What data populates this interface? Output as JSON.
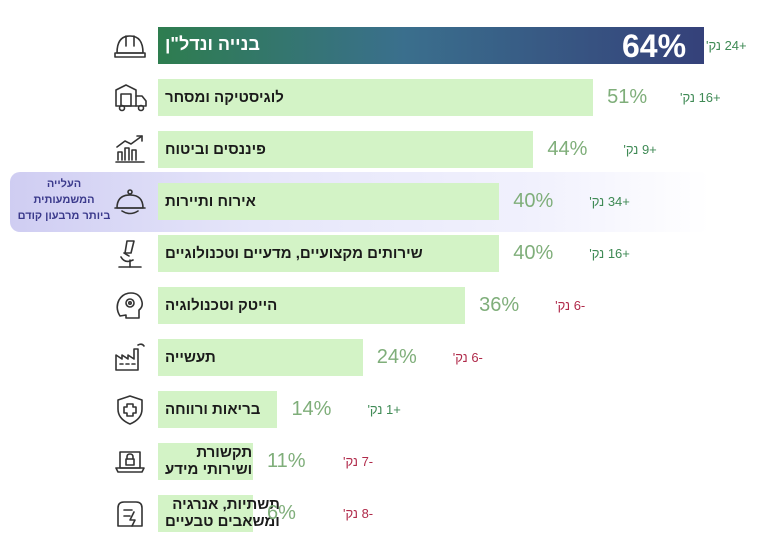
{
  "highlight": {
    "lines": [
      "העלייה",
      "המשמעותית",
      "ביותר מרבעון קודם"
    ],
    "row_index": 3
  },
  "colors": {
    "bar": "#d3f3c6",
    "top_bar_start": "#2e7d4f",
    "top_bar_end": "#35417a",
    "positive_change": "#3f8a55",
    "negative_change": "#b02a4a",
    "percent_text": "#7fae7a"
  },
  "chart_data": {
    "type": "bar",
    "orientation": "horizontal",
    "categories": [
      "בנייה ונדל\"ן",
      "לוגיסטיקה ומסחר",
      "פיננסים וביטוח",
      "אירוח ותיירות",
      "שירותים מקצועיים, מדעיים וטכנולוגיים",
      "הייטק וטכנולוגיה",
      "תעשייה",
      "בריאות ורווחה",
      "תקשורת ושירותי מידע",
      "תשתיות, אנרגיה ומשאבים טבעיים"
    ],
    "values": [
      64,
      51,
      44,
      40,
      40,
      36,
      24,
      14,
      11,
      6
    ],
    "labels": [
      "64%",
      "51%",
      "44%",
      "40%",
      "40%",
      "36%",
      "24%",
      "14%",
      "11%",
      "6%"
    ],
    "changes": [
      "+24 נק'",
      "+16 נק'",
      "+9 נק'",
      "+34 נק'",
      "+16 נק'",
      "-6 נק'",
      "-6 נק'",
      "+1 נק'",
      "-7 נק'",
      "-8 נק'"
    ],
    "change_values": [
      24,
      16,
      9,
      34,
      16,
      -6,
      -6,
      1,
      -7,
      -8
    ],
    "icons": [
      "helmet-icon",
      "delivery-truck-icon",
      "finance-chart-icon",
      "cloche-icon",
      "microscope-icon",
      "brain-chip-icon",
      "factory-icon",
      "health-shield-icon",
      "laptop-lock-icon",
      "energy-icon"
    ],
    "xlim": [
      0,
      64
    ],
    "grid": false,
    "legend": "none"
  }
}
